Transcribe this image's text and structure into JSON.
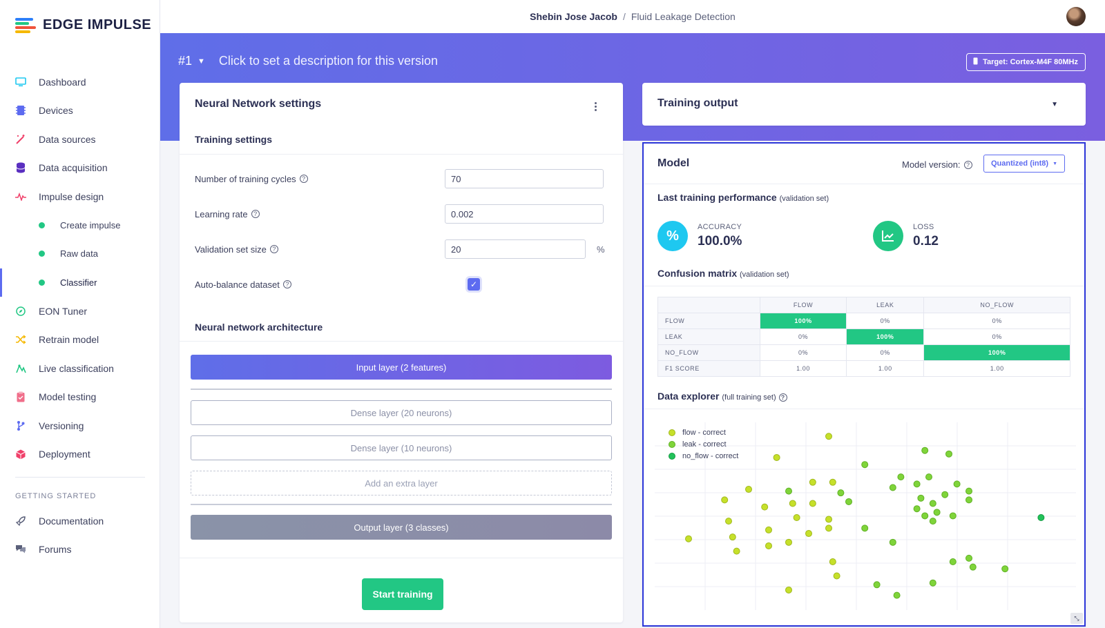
{
  "app": {
    "brand": "EDGE IMPULSE"
  },
  "header": {
    "owner": "Shebin Jose Jacob",
    "separator": "/",
    "project": "Fluid Leakage Detection"
  },
  "sidebar": {
    "items": [
      {
        "label": "Dashboard",
        "icon": "monitor-icon"
      },
      {
        "label": "Devices",
        "icon": "chip-icon"
      },
      {
        "label": "Data sources",
        "icon": "wand-icon"
      },
      {
        "label": "Data acquisition",
        "icon": "database-icon"
      },
      {
        "label": "Impulse design",
        "icon": "pulse-icon"
      },
      {
        "label": "Create impulse"
      },
      {
        "label": "Raw data"
      },
      {
        "label": "Classifier",
        "active": true
      },
      {
        "label": "EON Tuner",
        "icon": "compass-icon"
      },
      {
        "label": "Retrain model",
        "icon": "shuffle-icon"
      },
      {
        "label": "Live classification",
        "icon": "signal-icon"
      },
      {
        "label": "Model testing",
        "icon": "clipboard-icon"
      },
      {
        "label": "Versioning",
        "icon": "branch-icon"
      },
      {
        "label": "Deployment",
        "icon": "cube-icon"
      }
    ],
    "section_title": "GETTING STARTED",
    "help_items": [
      {
        "label": "Documentation",
        "icon": "rocket-icon"
      },
      {
        "label": "Forums",
        "icon": "chat-icon"
      }
    ]
  },
  "banner": {
    "version": "#1",
    "description": "Click to set a description for this version",
    "target": "Target: Cortex-M4F 80MHz"
  },
  "nn_settings": {
    "title": "Neural Network settings",
    "training_title": "Training settings",
    "fields": {
      "cycles_label": "Number of training cycles",
      "cycles_value": "70",
      "lr_label": "Learning rate",
      "lr_value": "0.002",
      "val_label": "Validation set size",
      "val_value": "20",
      "val_unit": "%",
      "balance_label": "Auto-balance dataset",
      "balance_checked": true
    },
    "arch_title": "Neural network architecture",
    "layers": {
      "input": "Input layer (2 features)",
      "dense1": "Dense layer (20 neurons)",
      "dense2": "Dense layer (10 neurons)",
      "add": "Add an extra layer",
      "output": "Output layer (3 classes)"
    },
    "start_button": "Start training"
  },
  "training_output": {
    "title": "Training output"
  },
  "model": {
    "title": "Model",
    "version_label": "Model version:",
    "version_value": "Quantized (int8)",
    "perf_title": "Last training performance",
    "perf_note": "(validation set)",
    "accuracy_label": "ACCURACY",
    "accuracy_value": "100.0%",
    "loss_label": "LOSS",
    "loss_value": "0.12",
    "cm_title": "Confusion matrix",
    "cm_note": "(validation set)",
    "cm_columns": [
      "FLOW",
      "LEAK",
      "NO_FLOW"
    ],
    "cm_rows": [
      {
        "label": "FLOW",
        "cells": [
          "100%",
          "0%",
          "0%"
        ],
        "hit": 0
      },
      {
        "label": "LEAK",
        "cells": [
          "0%",
          "100%",
          "0%"
        ],
        "hit": 1
      },
      {
        "label": "NO_FLOW",
        "cells": [
          "0%",
          "0%",
          "100%"
        ],
        "hit": 2
      },
      {
        "label": "F1 SCORE",
        "cells": [
          "1.00",
          "1.00",
          "1.00"
        ],
        "hit": -1
      }
    ],
    "explorer_title": "Data explorer",
    "explorer_note": "(full training set)",
    "legend": [
      {
        "label": "flow - correct",
        "color": "#c6e02a"
      },
      {
        "label": "leak - correct",
        "color": "#7fd43a"
      },
      {
        "label": "no_flow - correct",
        "color": "#22c25a"
      }
    ]
  },
  "colors": {
    "accent": "#5d6bf0",
    "success": "#22c784",
    "accuracy": "#1ec8f0",
    "loss": "#22c784"
  }
}
